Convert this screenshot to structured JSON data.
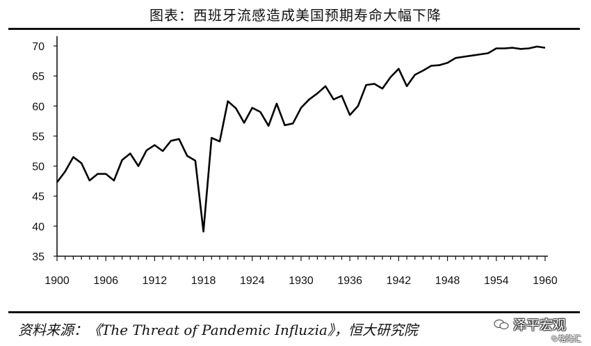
{
  "title": "图表：西班牙流感造成美国预期寿命大幅下降",
  "source": "资料来源：《The Threat of Pandemic Influzia》，恒大研究院",
  "watermark": {
    "brand": "泽平宏观",
    "sub": "©格隆汇",
    "icon": "wechat-bubble-icon"
  },
  "chart_data": {
    "type": "line",
    "title": "图表：西班牙流感造成美国预期寿命大幅下降",
    "xlabel": "",
    "ylabel": "",
    "xlim": [
      1900,
      1960
    ],
    "ylim": [
      35,
      70
    ],
    "xticks": [
      1900,
      1906,
      1912,
      1918,
      1924,
      1930,
      1936,
      1942,
      1948,
      1954,
      1960
    ],
    "yticks": [
      35,
      40,
      45,
      50,
      55,
      60,
      65,
      70
    ],
    "grid": false,
    "line_color": "#000000",
    "series": [
      {
        "x": [
          1900,
          1901,
          1902,
          1903,
          1904,
          1905,
          1906,
          1907,
          1908,
          1909,
          1910,
          1911,
          1912,
          1913,
          1914,
          1915,
          1916,
          1917,
          1918,
          1919,
          1920,
          1921,
          1922,
          1923,
          1924,
          1925,
          1926,
          1927,
          1928,
          1929,
          1930,
          1931,
          1932,
          1933,
          1934,
          1935,
          1936,
          1937,
          1938,
          1939,
          1940,
          1941,
          1942,
          1943,
          1944,
          1945,
          1946,
          1947,
          1948,
          1949,
          1950,
          1951,
          1952,
          1953,
          1954,
          1955,
          1956,
          1957,
          1958,
          1959,
          1960
        ],
        "values": [
          47.3,
          49.1,
          51.5,
          50.5,
          47.6,
          48.7,
          48.7,
          47.6,
          51.0,
          52.1,
          50.0,
          52.6,
          53.5,
          52.5,
          54.2,
          54.5,
          51.7,
          50.9,
          39.1,
          54.7,
          54.1,
          60.8,
          59.6,
          57.2,
          59.7,
          59.0,
          56.7,
          60.4,
          56.8,
          57.1,
          59.7,
          61.1,
          62.1,
          63.3,
          61.1,
          61.7,
          58.5,
          60.0,
          63.5,
          63.7,
          62.9,
          64.8,
          66.2,
          63.3,
          65.2,
          65.9,
          66.7,
          66.8,
          67.2,
          68.0,
          68.2,
          68.4,
          68.6,
          68.8,
          69.6,
          69.6,
          69.7,
          69.5,
          69.6,
          69.9,
          69.7
        ]
      }
    ]
  }
}
